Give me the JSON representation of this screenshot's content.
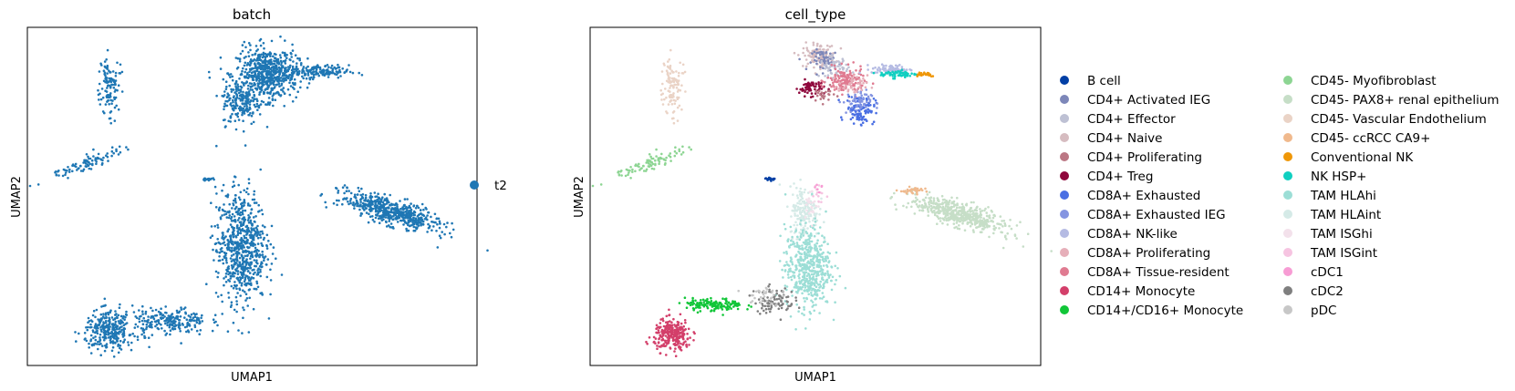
{
  "chart_data": [
    {
      "type": "scatter",
      "title": "batch",
      "xlabel": "UMAP1",
      "ylabel": "UMAP2",
      "xticks": [],
      "yticks": [],
      "grid": false,
      "legend_position": "right",
      "series": [
        {
          "name": "t2",
          "color": "#1f77b4"
        }
      ],
      "clusters": [
        {
          "label": "t2",
          "center": [
            1.2,
            9.0
          ],
          "spread": [
            0.25,
            1.1
          ],
          "n": 110
        },
        {
          "label": "t2",
          "center": [
            0.6,
            5.7
          ],
          "spread": [
            1.0,
            0.22
          ],
          "n": 90,
          "tilt": 0.6
        },
        {
          "label": "t2",
          "center": [
            5.4,
            9.5
          ],
          "spread": [
            0.75,
            1.0
          ],
          "n": 600
        },
        {
          "label": "t2",
          "center": [
            6.7,
            9.6
          ],
          "spread": [
            0.8,
            0.25
          ],
          "n": 160
        },
        {
          "label": "t2",
          "center": [
            4.7,
            8.3
          ],
          "spread": [
            0.45,
            0.9
          ],
          "n": 180
        },
        {
          "label": "t2",
          "center": [
            3.8,
            5.0
          ],
          "spread": [
            0.12,
            0.06
          ],
          "n": 20
        },
        {
          "label": "t2",
          "center": [
            4.7,
            2.1
          ],
          "spread": [
            0.6,
            2.2
          ],
          "n": 700
        },
        {
          "label": "t2",
          "center": [
            2.8,
            -1.1
          ],
          "spread": [
            0.9,
            0.55
          ],
          "n": 220
        },
        {
          "label": "t2",
          "center": [
            1.2,
            -1.5
          ],
          "spread": [
            0.6,
            0.75
          ],
          "n": 300
        },
        {
          "label": "t2",
          "center": [
            8.7,
            3.6
          ],
          "spread": [
            1.3,
            0.45
          ],
          "n": 550,
          "tilt": -0.5
        }
      ],
      "xlim": [
        -1.0,
        11.0
      ],
      "ylim": [
        -3.0,
        11.5
      ]
    },
    {
      "type": "scatter",
      "title": "cell_type",
      "xlabel": "UMAP1",
      "ylabel": "UMAP2",
      "xticks": [],
      "yticks": [],
      "grid": false,
      "legend_position": "right",
      "series": [
        {
          "name": "B cell",
          "color": "#023fa5"
        },
        {
          "name": "CD4+ Activated IEG",
          "color": "#7d87b9"
        },
        {
          "name": "CD4+ Effector",
          "color": "#bec1d4"
        },
        {
          "name": "CD4+ Naive",
          "color": "#d6bcc0"
        },
        {
          "name": "CD4+ Proliferating",
          "color": "#bb7784"
        },
        {
          "name": "CD4+ Treg",
          "color": "#8e063b"
        },
        {
          "name": "CD8A+ Exhausted",
          "color": "#4a6fe3"
        },
        {
          "name": "CD8A+ Exhausted IEG",
          "color": "#8595e1"
        },
        {
          "name": "CD8A+ NK-like",
          "color": "#b5bbe3"
        },
        {
          "name": "CD8A+ Proliferating",
          "color": "#e6afb9"
        },
        {
          "name": "CD8A+ Tissue-resident",
          "color": "#e07b91"
        },
        {
          "name": "CD14+ Monocyte",
          "color": "#d33f6a"
        },
        {
          "name": "CD14+/CD16+ Monocyte",
          "color": "#11c638"
        },
        {
          "name": "CD45- Myofibroblast",
          "color": "#8dd593"
        },
        {
          "name": "CD45- PAX8+ renal epithelium",
          "color": "#c6dec7"
        },
        {
          "name": "CD45- Vascular Endothelium",
          "color": "#ead3c6"
        },
        {
          "name": "CD45- ccRCC CA9+",
          "color": "#f0b98d"
        },
        {
          "name": "Conventional NK",
          "color": "#ef9708"
        },
        {
          "name": "NK HSP+",
          "color": "#0fcfc0"
        },
        {
          "name": "TAM HLAhi",
          "color": "#9cded6"
        },
        {
          "name": "TAM HLAint",
          "color": "#d5eae7"
        },
        {
          "name": "TAM ISGhi",
          "color": "#f3e1eb"
        },
        {
          "name": "TAM ISGint",
          "color": "#f6c4e1"
        },
        {
          "name": "cDC1",
          "color": "#f79cd4"
        },
        {
          "name": "cDC2",
          "color": "#7f7f7f"
        },
        {
          "name": "pDC",
          "color": "#c7c7c7"
        }
      ],
      "clusters": [
        {
          "label": "CD45- Vascular Endothelium",
          "center": [
            1.2,
            9.0
          ],
          "spread": [
            0.25,
            1.1
          ],
          "n": 110
        },
        {
          "label": "CD45- Myofibroblast",
          "center": [
            0.6,
            5.7
          ],
          "spread": [
            1.0,
            0.22
          ],
          "n": 90,
          "tilt": 0.6
        },
        {
          "label": "CD4+ Naive",
          "center": [
            5.1,
            10.3
          ],
          "spread": [
            0.4,
            0.45
          ],
          "n": 120
        },
        {
          "label": "CD4+ Activated IEG",
          "center": [
            5.3,
            10.1
          ],
          "spread": [
            0.35,
            0.4
          ],
          "n": 60
        },
        {
          "label": "CD4+ Effector",
          "center": [
            5.5,
            9.8
          ],
          "spread": [
            0.35,
            0.4
          ],
          "n": 60
        },
        {
          "label": "CD4+ Treg",
          "center": [
            4.9,
            8.9
          ],
          "spread": [
            0.3,
            0.3
          ],
          "n": 70
        },
        {
          "label": "CD4+ Proliferating",
          "center": [
            5.2,
            8.6
          ],
          "spread": [
            0.3,
            0.3
          ],
          "n": 25
        },
        {
          "label": "CD8A+ Tissue-resident",
          "center": [
            5.8,
            9.2
          ],
          "spread": [
            0.45,
            0.5
          ],
          "n": 140
        },
        {
          "label": "CD8A+ Exhausted",
          "center": [
            6.2,
            8.0
          ],
          "spread": [
            0.35,
            0.55
          ],
          "n": 110
        },
        {
          "label": "CD8A+ Exhausted IEG",
          "center": [
            6.1,
            8.3
          ],
          "spread": [
            0.35,
            0.45
          ],
          "n": 50
        },
        {
          "label": "CD8A+ Proliferating",
          "center": [
            6.0,
            9.0
          ],
          "spread": [
            0.35,
            0.4
          ],
          "n": 40
        },
        {
          "label": "CD8A+ NK-like",
          "center": [
            7.0,
            9.7
          ],
          "spread": [
            0.45,
            0.18
          ],
          "n": 70
        },
        {
          "label": "NK HSP+",
          "center": [
            7.2,
            9.5
          ],
          "spread": [
            0.45,
            0.15
          ],
          "n": 60
        },
        {
          "label": "Conventional NK",
          "center": [
            7.9,
            9.5
          ],
          "spread": [
            0.3,
            0.1
          ],
          "n": 30
        },
        {
          "label": "B cell",
          "center": [
            3.8,
            5.0
          ],
          "spread": [
            0.12,
            0.06
          ],
          "n": 20
        },
        {
          "label": "TAM HLAint",
          "center": [
            4.7,
            3.6
          ],
          "spread": [
            0.35,
            1.0
          ],
          "n": 160
        },
        {
          "label": "TAM HLAhi",
          "center": [
            4.8,
            1.2
          ],
          "spread": [
            0.55,
            1.6
          ],
          "n": 520
        },
        {
          "label": "TAM ISGhi",
          "center": [
            4.9,
            4.0
          ],
          "spread": [
            0.2,
            0.6
          ],
          "n": 25
        },
        {
          "label": "TAM ISGint",
          "center": [
            5.1,
            4.3
          ],
          "spread": [
            0.15,
            0.4
          ],
          "n": 12
        },
        {
          "label": "cDC2",
          "center": [
            3.9,
            -0.2
          ],
          "spread": [
            0.5,
            0.5
          ],
          "n": 90
        },
        {
          "label": "pDC",
          "center": [
            3.6,
            0.0
          ],
          "spread": [
            0.4,
            0.4
          ],
          "n": 30
        },
        {
          "label": "CD14+/CD16+ Monocyte",
          "center": [
            2.3,
            -0.4
          ],
          "spread": [
            0.7,
            0.25
          ],
          "n": 140
        },
        {
          "label": "CD14+ Monocyte",
          "center": [
            1.2,
            -1.7
          ],
          "spread": [
            0.45,
            0.6
          ],
          "n": 260
        },
        {
          "label": "CD45- PAX8+ renal epithelium",
          "center": [
            8.8,
            3.5
          ],
          "spread": [
            1.25,
            0.42
          ],
          "n": 520,
          "tilt": -0.5
        },
        {
          "label": "CD45- ccRCC CA9+",
          "center": [
            7.6,
            4.5
          ],
          "spread": [
            0.35,
            0.12
          ],
          "n": 30
        },
        {
          "label": "cDC1",
          "center": [
            5.1,
            4.6
          ],
          "spread": [
            0.1,
            0.2
          ],
          "n": 6
        }
      ],
      "xlim": [
        -1.0,
        11.0
      ],
      "ylim": [
        -3.0,
        11.5
      ]
    }
  ]
}
